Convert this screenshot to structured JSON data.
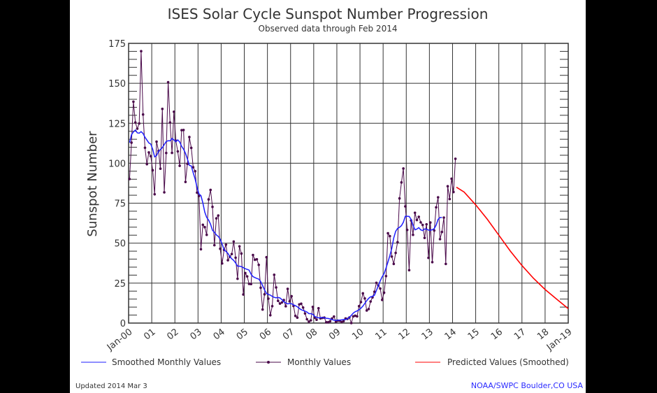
{
  "chart_data": {
    "type": "line",
    "title": "ISES Solar Cycle Sunspot Number Progression",
    "subtitle": "Observed data through Feb 2014",
    "ylabel": "Sunspot Number",
    "xlabel": "",
    "ylim": [
      0,
      175
    ],
    "yticks": [
      0,
      25,
      50,
      75,
      100,
      125,
      150,
      175
    ],
    "xlim": [
      "2000-01",
      "2019-01"
    ],
    "xticks": [
      "Jan-00",
      "01",
      "02",
      "03",
      "04",
      "05",
      "06",
      "07",
      "08",
      "09",
      "10",
      "11",
      "12",
      "13",
      "14",
      "15",
      "16",
      "17",
      "18",
      "Jan-19"
    ],
    "grid": true,
    "legend_position": "bottom",
    "colors": {
      "smoothed": "#1e1eff",
      "monthly": "#4a0a4a",
      "predicted": "#ff0000",
      "grid": "#333333",
      "credit": "#2a2aff"
    },
    "series": [
      {
        "name": "Monthly Values",
        "monthly_by_year": {
          "2000": [
            90.1,
            112.9,
            138.5,
            125.5,
            121.6,
            124.9,
            170.1,
            130.5,
            109.7,
            99.4,
            106.8,
            104.4
          ],
          "2001": [
            95.6,
            80.6,
            113.5,
            107.7,
            96.6,
            134.0,
            81.8,
            106.4,
            150.7,
            125.5,
            106.5,
            132.2
          ],
          "2002": [
            114.1,
            107.4,
            98.4,
            120.7,
            120.8,
            88.3,
            99.6,
            116.4,
            109.6,
            97.5,
            95.0,
            81.6
          ],
          "2003": [
            79.5,
            46.2,
            61.5,
            60.0,
            55.2,
            77.4,
            83.3,
            72.7,
            48.7,
            65.5,
            67.3,
            46.5
          ],
          "2004": [
            37.3,
            45.8,
            49.1,
            39.3,
            41.5,
            43.2,
            51.0,
            40.9,
            27.7,
            48.0,
            43.5,
            17.9
          ],
          "2005": [
            31.3,
            29.2,
            24.5,
            24.4,
            42.6,
            39.6,
            39.9,
            36.4,
            22.1,
            8.5,
            18.0,
            41.2
          ],
          "2006": [
            15.3,
            4.9,
            10.6,
            30.2,
            22.3,
            13.9,
            12.2,
            12.9,
            14.4,
            10.5,
            21.4,
            13.6
          ],
          "2007": [
            16.8,
            10.7,
            4.5,
            3.4,
            11.7,
            12.1,
            9.7,
            6.0,
            2.4,
            0.9,
            1.7,
            10.1
          ],
          "2008": [
            3.3,
            2.1,
            9.3,
            2.9,
            3.2,
            3.4,
            0.5,
            0.5,
            1.1,
            2.9,
            4.1,
            0.8
          ],
          "2009": [
            1.5,
            1.4,
            0.7,
            1.2,
            2.9,
            2.6,
            3.5,
            0.0,
            4.2,
            4.6,
            4.2,
            10.6
          ],
          "2010": [
            13.1,
            18.6,
            15.4,
            7.9,
            8.8,
            13.5,
            16.1,
            19.6,
            25.2,
            23.5,
            21.6,
            14.5
          ],
          "2011": [
            19.0,
            29.4,
            56.2,
            54.4,
            41.6,
            37.0,
            43.9,
            50.6,
            78.0,
            88.0,
            96.7,
            73.0
          ],
          "2012": [
            58.3,
            33.1,
            64.2,
            55.2,
            69.0,
            64.5,
            66.5,
            63.0,
            61.4,
            53.3,
            61.8,
            40.8
          ],
          "2013": [
            62.9,
            38.1,
            57.9,
            72.4,
            78.7,
            52.5,
            57.0,
            66.0,
            37.0,
            85.6,
            77.6,
            90.3
          ],
          "2014": [
            82.0,
            102.8
          ]
        }
      },
      {
        "name": "Smoothed Monthly Values",
        "monthly_by_year": {
          "2000": [
            112.9,
            117.8,
            119.6,
            120.8,
            119.0,
            118.8,
            119.8,
            118.6,
            116.3,
            114.5,
            112.7,
            112.0
          ],
          "2001": [
            108.7,
            104.0,
            104.8,
            107.5,
            108.6,
            109.8,
            111.7,
            113.6,
            114.1,
            114.0,
            115.5,
            114.6
          ],
          "2002": [
            113.5,
            114.6,
            113.3,
            110.5,
            108.8,
            106.2,
            102.7,
            98.7,
            98.3,
            94.0,
            90.1,
            85.0
          ],
          "2003": [
            80.8,
            79.7,
            75.2,
            69.4,
            66.1,
            64.4,
            61.9,
            58.1,
            56.8,
            55.2,
            54.2,
            52.5
          ],
          "2004": [
            49.4,
            45.9,
            44.8,
            43.6,
            41.6,
            40.2,
            39.2,
            37.6,
            35.6,
            35.6,
            35.3,
            34.7
          ],
          "2005": [
            34.0,
            33.6,
            33.1,
            30.6,
            29.1,
            28.5,
            27.9,
            27.5,
            25.9,
            23.4,
            20.8,
            18.5
          ],
          "2006": [
            17.9,
            17.5,
            16.7,
            16.1,
            15.8,
            16.0,
            15.7,
            14.7,
            13.3,
            12.7,
            12.0,
            12.3
          ],
          "2007": [
            12.1,
            11.4,
            10.9,
            10.2,
            9.2,
            8.4,
            7.9,
            7.5,
            6.9,
            5.9,
            5.9,
            5.5
          ],
          "2008": [
            4.2,
            3.6,
            3.3,
            3.4,
            3.4,
            3.3,
            3.0,
            2.9,
            2.6,
            2.2,
            1.8,
            1.7
          ],
          "2009": [
            1.8,
            1.9,
            2.0,
            2.2,
            2.2,
            2.7,
            3.6,
            4.8,
            6.2,
            7.1,
            7.6,
            8.3
          ],
          "2010": [
            9.3,
            10.6,
            12.3,
            14.0,
            15.5,
            16.4,
            16.7,
            17.4,
            20.4,
            23.3,
            26.4,
            29.0
          ],
          "2011": [
            30.9,
            34.4,
            38.3,
            42.2,
            46.8,
            53.2,
            57.4,
            59.2,
            59.9,
            61.0,
            63.1,
            66.8
          ],
          "2012": [
            66.8,
            66.7,
            64.9,
            61.4,
            58.3,
            58.8,
            59.7,
            58.3,
            57.9,
            58.9,
            58.8,
            58.2
          ],
          "2013": [
            58.1,
            58.4,
            59.1,
            61.3,
            64.9,
            66.0,
            66.0
          ]
        }
      },
      {
        "name": "Predicted Values (Smoothed)",
        "points": [
          [
            "2014-03",
            85
          ],
          [
            "2014-07",
            82
          ],
          [
            "2015-01",
            74
          ],
          [
            "2015-07",
            65
          ],
          [
            "2016-01",
            55
          ],
          [
            "2016-07",
            45
          ],
          [
            "2017-01",
            36
          ],
          [
            "2017-07",
            28
          ],
          [
            "2018-01",
            21
          ],
          [
            "2018-07",
            15
          ],
          [
            "2019-01",
            9
          ]
        ]
      }
    ]
  },
  "legend": {
    "smoothed": "Smoothed Monthly Values",
    "monthly": "Monthly Values",
    "predicted": "Predicted Values (Smoothed)"
  },
  "footer": {
    "updated": "Updated 2014 Mar  3",
    "credit": "NOAA/SWPC Boulder,CO USA"
  }
}
